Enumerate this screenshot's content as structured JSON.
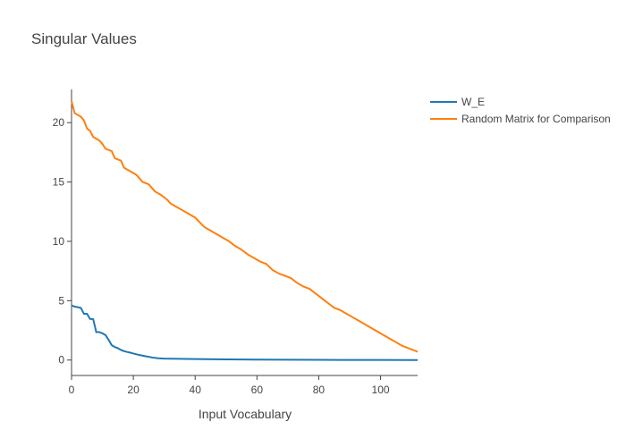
{
  "chart_data": {
    "type": "line",
    "title": "Singular Values",
    "xlabel": "Input Vocabulary",
    "ylabel": "",
    "xlim": [
      0,
      112
    ],
    "ylim": [
      -1.3,
      22.8
    ],
    "x_ticks": [
      0,
      20,
      40,
      60,
      80,
      100
    ],
    "y_ticks": [
      0,
      5,
      10,
      15,
      20
    ],
    "grid": false,
    "legend_position": "top-right",
    "series": [
      {
        "name": "W_E",
        "color": "#1f77b4",
        "x": [
          0,
          1,
          2,
          3,
          4,
          5,
          6,
          7,
          8,
          9,
          10,
          11,
          12,
          13,
          14,
          15,
          16,
          17,
          18,
          19,
          20,
          22,
          24,
          26,
          28,
          30,
          35,
          40,
          50,
          60,
          70,
          80,
          90,
          100,
          112
        ],
        "y": [
          4.6,
          4.5,
          4.45,
          4.4,
          3.9,
          3.9,
          3.45,
          3.45,
          2.35,
          2.35,
          2.25,
          2.1,
          1.7,
          1.25,
          1.1,
          1.0,
          0.85,
          0.75,
          0.68,
          0.62,
          0.55,
          0.42,
          0.32,
          0.22,
          0.15,
          0.12,
          0.1,
          0.08,
          0.06,
          0.04,
          0.03,
          0.02,
          0.01,
          0.005,
          0.0
        ]
      },
      {
        "name": "Random Matrix for Comparison",
        "color": "#ff7f0e",
        "x": [
          0,
          1,
          3,
          4,
          5,
          6,
          7,
          9,
          10,
          11,
          13,
          14,
          16,
          17,
          19,
          21,
          23,
          25,
          27,
          29,
          31,
          32,
          34,
          36,
          38,
          40,
          43,
          45,
          47,
          49,
          51,
          53,
          55,
          57,
          59,
          61,
          63,
          65,
          67,
          69,
          71,
          73,
          75,
          77,
          79,
          81,
          83,
          85,
          87,
          89,
          91,
          93,
          95,
          97,
          99,
          101,
          103,
          105,
          107,
          109,
          112
        ],
        "y": [
          21.8,
          20.8,
          20.5,
          20.2,
          19.5,
          19.3,
          18.8,
          18.5,
          18.2,
          17.8,
          17.6,
          17.0,
          16.8,
          16.2,
          15.9,
          15.6,
          15.0,
          14.8,
          14.2,
          13.9,
          13.5,
          13.2,
          12.9,
          12.6,
          12.3,
          12.0,
          11.2,
          10.9,
          10.6,
          10.3,
          10.0,
          9.6,
          9.3,
          8.9,
          8.6,
          8.3,
          8.1,
          7.6,
          7.3,
          7.1,
          6.9,
          6.5,
          6.2,
          6.0,
          5.6,
          5.2,
          4.8,
          4.4,
          4.2,
          3.9,
          3.6,
          3.3,
          3.0,
          2.7,
          2.4,
          2.1,
          1.8,
          1.5,
          1.2,
          1.0,
          0.7
        ]
      }
    ]
  }
}
